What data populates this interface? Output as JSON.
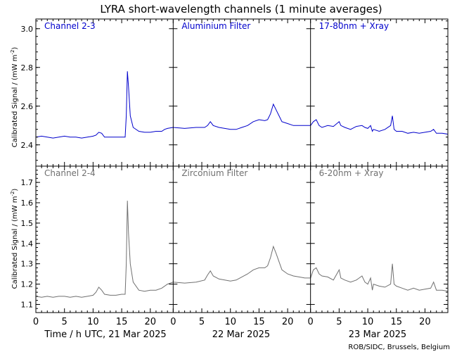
{
  "title": "LYRA short-wavelength channels (1 minute averages)",
  "ylabel": "Calibrated Signal / (mW m",
  "ylabel_sup": "-2",
  "ylabel_end": ")",
  "xlabel": "Time / h UTC, 21 Mar 2025",
  "day_labels": [
    "22 Mar 2025",
    "23 Mar 2025"
  ],
  "credit": "ROB/SIDC, Brussels, Belgium",
  "colors": {
    "top": "#0000cc",
    "bottom": "#707070",
    "axes": "#000000"
  },
  "chart_data": {
    "type": "line",
    "x_unit": "hours UTC (0-72, starting 21 Mar 2025)",
    "x_ticks": [
      0,
      5,
      10,
      15,
      20
    ],
    "rows": [
      {
        "ylim": [
          2.29,
          3.05
        ],
        "y_ticks": [
          "2.4",
          "2.6",
          "2.8",
          "3.0"
        ],
        "y_tick_values": [
          2.4,
          2.6,
          2.8,
          3.0
        ],
        "series": [
          {
            "name": "Channel 2-3",
            "points": [
              [
                0,
                2.44
              ],
              [
                1,
                2.445
              ],
              [
                2,
                2.44
              ],
              [
                3,
                2.435
              ],
              [
                4,
                2.44
              ],
              [
                5,
                2.445
              ],
              [
                6,
                2.44
              ],
              [
                7,
                2.44
              ],
              [
                8,
                2.435
              ],
              [
                9,
                2.44
              ],
              [
                10,
                2.445
              ],
              [
                10.5,
                2.45
              ],
              [
                11,
                2.465
              ],
              [
                11.5,
                2.46
              ],
              [
                12,
                2.44
              ],
              [
                13,
                2.44
              ],
              [
                14,
                2.44
              ],
              [
                15,
                2.44
              ],
              [
                15.6,
                2.44
              ],
              [
                15.8,
                2.55
              ],
              [
                16.0,
                2.78
              ],
              [
                16.2,
                2.7
              ],
              [
                16.5,
                2.55
              ],
              [
                17,
                2.49
              ],
              [
                18,
                2.47
              ],
              [
                19,
                2.465
              ],
              [
                20,
                2.465
              ],
              [
                21,
                2.47
              ],
              [
                22,
                2.47
              ],
              [
                22.5,
                2.48
              ],
              [
                23,
                2.485
              ],
              [
                24,
                2.49
              ]
            ]
          },
          {
            "name": "Aluminium Filter",
            "points": [
              [
                24,
                2.49
              ],
              [
                26,
                2.485
              ],
              [
                28,
                2.49
              ],
              [
                29.5,
                2.49
              ],
              [
                30,
                2.5
              ],
              [
                30.5,
                2.52
              ],
              [
                31,
                2.5
              ],
              [
                32,
                2.49
              ],
              [
                33,
                2.485
              ],
              [
                34,
                2.48
              ],
              [
                35,
                2.48
              ],
              [
                36,
                2.49
              ],
              [
                37,
                2.5
              ],
              [
                38,
                2.52
              ],
              [
                39,
                2.53
              ],
              [
                40,
                2.525
              ],
              [
                40.5,
                2.53
              ],
              [
                41,
                2.56
              ],
              [
                41.5,
                2.61
              ],
              [
                42,
                2.58
              ],
              [
                42.5,
                2.55
              ],
              [
                43,
                2.52
              ],
              [
                44,
                2.51
              ],
              [
                45,
                2.5
              ],
              [
                46,
                2.5
              ],
              [
                47,
                2.5
              ],
              [
                48,
                2.5
              ]
            ]
          },
          {
            "name": "17-80nm + Xray",
            "points": [
              [
                48,
                2.5
              ],
              [
                48.5,
                2.52
              ],
              [
                49,
                2.53
              ],
              [
                49.5,
                2.5
              ],
              [
                50,
                2.49
              ],
              [
                51,
                2.5
              ],
              [
                52,
                2.495
              ],
              [
                53,
                2.52
              ],
              [
                53.3,
                2.5
              ],
              [
                54,
                2.49
              ],
              [
                55,
                2.48
              ],
              [
                56,
                2.495
              ],
              [
                57,
                2.5
              ],
              [
                57.5,
                2.49
              ],
              [
                58,
                2.485
              ],
              [
                58.5,
                2.5
              ],
              [
                58.8,
                2.47
              ],
              [
                59,
                2.48
              ],
              [
                60,
                2.47
              ],
              [
                61,
                2.48
              ],
              [
                62,
                2.5
              ],
              [
                62.3,
                2.55
              ],
              [
                62.6,
                2.48
              ],
              [
                63,
                2.47
              ],
              [
                64,
                2.47
              ],
              [
                65,
                2.46
              ],
              [
                66,
                2.465
              ],
              [
                67,
                2.46
              ],
              [
                68,
                2.465
              ],
              [
                69,
                2.47
              ],
              [
                69.5,
                2.48
              ],
              [
                70,
                2.46
              ],
              [
                71,
                2.46
              ],
              [
                72,
                2.455
              ]
            ]
          }
        ]
      },
      {
        "ylim": [
          1.06,
          1.78
        ],
        "y_ticks": [
          "1.1",
          "1.2",
          "1.3",
          "1.4",
          "1.5",
          "1.6",
          "1.7"
        ],
        "y_tick_values": [
          1.1,
          1.2,
          1.3,
          1.4,
          1.5,
          1.6,
          1.7
        ],
        "series": [
          {
            "name": "Channel 2-4",
            "points": [
              [
                0,
                1.14
              ],
              [
                1,
                1.135
              ],
              [
                2,
                1.14
              ],
              [
                3,
                1.135
              ],
              [
                4,
                1.14
              ],
              [
                5,
                1.14
              ],
              [
                6,
                1.135
              ],
              [
                7,
                1.14
              ],
              [
                8,
                1.135
              ],
              [
                9,
                1.14
              ],
              [
                10,
                1.145
              ],
              [
                10.5,
                1.16
              ],
              [
                11,
                1.185
              ],
              [
                11.5,
                1.17
              ],
              [
                12,
                1.15
              ],
              [
                13,
                1.145
              ],
              [
                14,
                1.145
              ],
              [
                15,
                1.15
              ],
              [
                15.6,
                1.15
              ],
              [
                15.8,
                1.3
              ],
              [
                16.0,
                1.61
              ],
              [
                16.2,
                1.45
              ],
              [
                16.5,
                1.3
              ],
              [
                17,
                1.21
              ],
              [
                18,
                1.17
              ],
              [
                19,
                1.165
              ],
              [
                20,
                1.17
              ],
              [
                21,
                1.17
              ],
              [
                22,
                1.18
              ],
              [
                23,
                1.2
              ],
              [
                24,
                1.21
              ]
            ]
          },
          {
            "name": "Zirconium Filter",
            "points": [
              [
                24,
                1.21
              ],
              [
                26,
                1.205
              ],
              [
                28,
                1.21
              ],
              [
                29.5,
                1.22
              ],
              [
                30,
                1.245
              ],
              [
                30.5,
                1.265
              ],
              [
                31,
                1.24
              ],
              [
                32,
                1.225
              ],
              [
                33,
                1.22
              ],
              [
                34,
                1.215
              ],
              [
                35,
                1.22
              ],
              [
                36,
                1.235
              ],
              [
                37,
                1.25
              ],
              [
                38,
                1.27
              ],
              [
                39,
                1.28
              ],
              [
                40,
                1.28
              ],
              [
                40.5,
                1.29
              ],
              [
                41,
                1.33
              ],
              [
                41.5,
                1.385
              ],
              [
                42,
                1.35
              ],
              [
                42.5,
                1.31
              ],
              [
                43,
                1.27
              ],
              [
                44,
                1.25
              ],
              [
                45,
                1.24
              ],
              [
                46,
                1.235
              ],
              [
                47,
                1.23
              ],
              [
                48,
                1.23
              ]
            ]
          },
          {
            "name": "6-20nm + Xray",
            "points": [
              [
                48,
                1.23
              ],
              [
                48.5,
                1.27
              ],
              [
                49,
                1.28
              ],
              [
                49.5,
                1.25
              ],
              [
                50,
                1.24
              ],
              [
                51,
                1.235
              ],
              [
                52,
                1.22
              ],
              [
                53,
                1.27
              ],
              [
                53.3,
                1.23
              ],
              [
                54,
                1.22
              ],
              [
                55,
                1.21
              ],
              [
                56,
                1.22
              ],
              [
                57,
                1.24
              ],
              [
                57.5,
                1.21
              ],
              [
                58,
                1.2
              ],
              [
                58.5,
                1.23
              ],
              [
                58.8,
                1.17
              ],
              [
                59,
                1.2
              ],
              [
                60,
                1.19
              ],
              [
                61,
                1.185
              ],
              [
                62,
                1.2
              ],
              [
                62.3,
                1.3
              ],
              [
                62.6,
                1.2
              ],
              [
                63,
                1.19
              ],
              [
                64,
                1.18
              ],
              [
                65,
                1.17
              ],
              [
                66,
                1.18
              ],
              [
                67,
                1.17
              ],
              [
                68,
                1.175
              ],
              [
                69,
                1.18
              ],
              [
                69.5,
                1.21
              ],
              [
                70,
                1.17
              ],
              [
                71,
                1.17
              ],
              [
                72,
                1.165
              ]
            ]
          }
        ]
      }
    ]
  }
}
